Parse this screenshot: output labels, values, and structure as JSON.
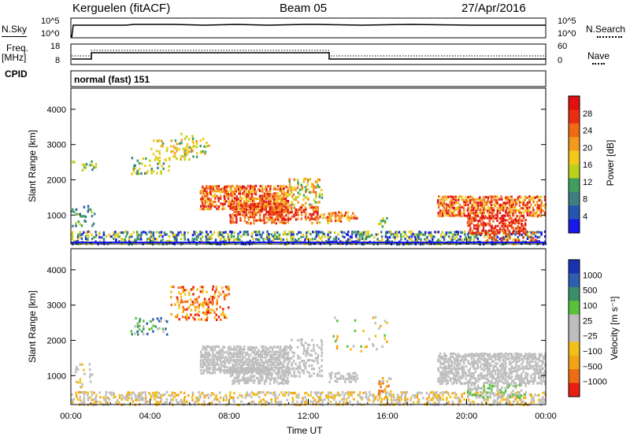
{
  "header": {
    "radar": "Kerguelen (fitACF)",
    "beam": "Beam 05",
    "date": "27/Apr/2016"
  },
  "nsky_panel": {
    "left_label": "N.Sky",
    "left_ticks": [
      "10^5",
      "10^0"
    ],
    "right_label": "N.Search",
    "right_ticks": [
      "10^5",
      "10^0"
    ]
  },
  "freq_panel": {
    "left_label_1": "Freq.",
    "left_label_2": "[MHz]",
    "left_ticks": [
      "18",
      "8"
    ],
    "right_label": "Nave",
    "right_ticks": [
      "60",
      "0"
    ]
  },
  "cpid": {
    "label": "CPID",
    "value": "normal (fast) 151"
  },
  "chart_data": [
    {
      "type": "heatmap",
      "name": "Power",
      "ylabel": "Slant Range [km]",
      "ylim": [
        180,
        4600
      ],
      "yticks": [
        1000,
        2000,
        3000,
        4000
      ],
      "xlim": [
        "00:00",
        "24:00"
      ],
      "colorbar_label": "Power [dB]",
      "colorbar_ticks": [
        "4",
        "8",
        "12",
        "16",
        "20",
        "24",
        "28"
      ],
      "colorscale": [
        "#1818e8",
        "#2555b0",
        "#3e7f7f",
        "#3f9f5a",
        "#bcd21a",
        "#f3c81a",
        "#f39a1a",
        "#ef6a12",
        "#ea2d10",
        "#e01010"
      ]
    },
    {
      "type": "heatmap",
      "name": "Velocity",
      "ylabel": "Slant Range [km]",
      "ylim": [
        180,
        4600
      ],
      "yticks": [
        1000,
        2000,
        3000,
        4000
      ],
      "xlabel": "Time UT",
      "xticks": [
        "00:00",
        "04:00",
        "08:00",
        "12:00",
        "16:00",
        "20:00",
        "00:00"
      ],
      "colorbar_label": "Velocity [m s⁻¹]",
      "colorbar_ticks": [
        "1000",
        "500",
        "100",
        "25",
        "−25",
        "−100",
        "−500",
        "−1000"
      ],
      "colorscale": [
        "#1a32b0",
        "#2d5fae",
        "#3b8e6a",
        "#58c23a",
        "#bdbdbd",
        "#bdbdbd",
        "#f2c016",
        "#f3a414",
        "#ef6c12",
        "#e81e10"
      ]
    }
  ]
}
